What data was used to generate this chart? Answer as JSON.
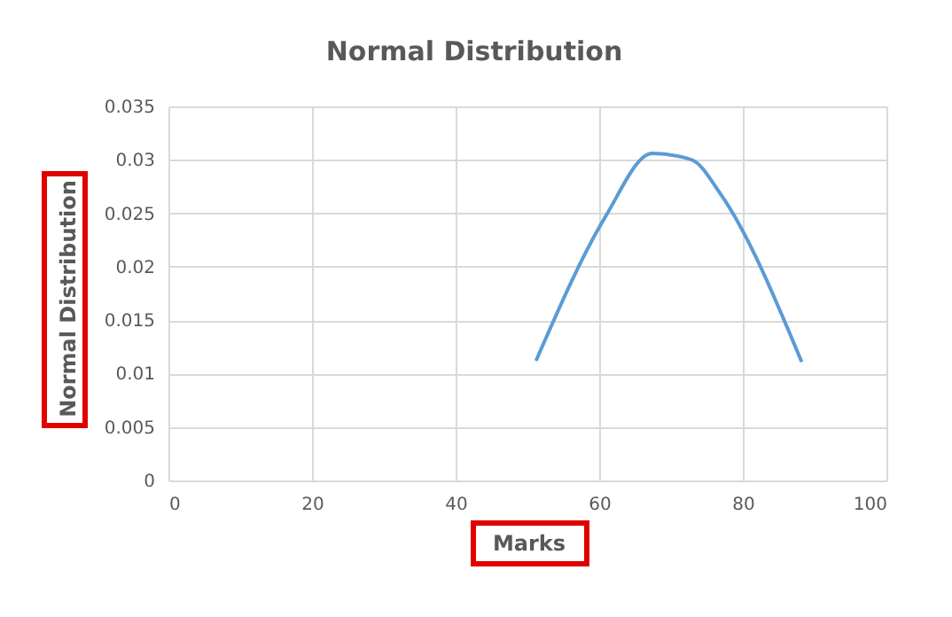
{
  "chart_data": {
    "type": "line",
    "title": "Normal  Distribution",
    "xlabel": "Marks",
    "ylabel": "Normal Distribution",
    "x": [
      51.2,
      60.8,
      67.4,
      72.9,
      76.9,
      88.2
    ],
    "series": [
      {
        "color": "#5b9bd5",
        "values": [
          0.0112,
          0.0246,
          0.0306,
          0.03,
          0.0268,
          0.0111
        ]
      }
    ],
    "xlim": [
      0,
      100
    ],
    "xticks": [
      0,
      20,
      40,
      60,
      80,
      100
    ],
    "ylim": [
      0,
      0.035
    ],
    "yticks": [
      0,
      0.005,
      0.01,
      0.015,
      0.02,
      0.025,
      0.03,
      0.035
    ],
    "grid": true,
    "marker": "none",
    "line_style": "solid"
  }
}
